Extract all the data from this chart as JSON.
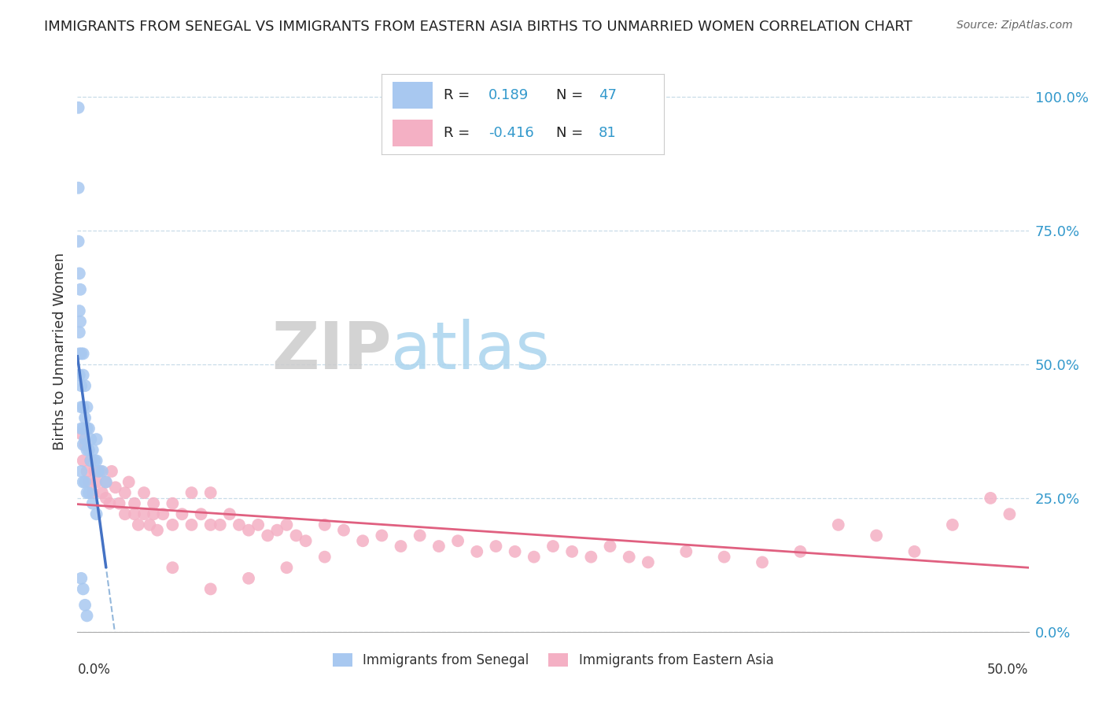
{
  "title": "IMMIGRANTS FROM SENEGAL VS IMMIGRANTS FROM EASTERN ASIA BIRTHS TO UNMARRIED WOMEN CORRELATION CHART",
  "source": "Source: ZipAtlas.com",
  "ylabel": "Births to Unmarried Women",
  "xlim": [
    0.0,
    0.5
  ],
  "ylim": [
    0.0,
    1.05
  ],
  "yaxis_labels": [
    "0.0%",
    "25.0%",
    "50.0%",
    "75.0%",
    "100.0%"
  ],
  "yaxis_values": [
    0.0,
    0.25,
    0.5,
    0.75,
    1.0
  ],
  "senegal_R": 0.189,
  "senegal_N": 47,
  "eastern_asia_R": -0.416,
  "eastern_asia_N": 81,
  "senegal_color": "#a8c8f0",
  "senegal_line_color": "#4472c4",
  "senegal_dash_color": "#6699cc",
  "eastern_asia_color": "#f4b0c4",
  "eastern_asia_line_color": "#e06080",
  "watermark_zip_color": "#cccccc",
  "watermark_atlas_color": "#99ccee",
  "grid_color": "#c8dce8",
  "senegal_x": [
    0.0005,
    0.0005,
    0.0005,
    0.001,
    0.001,
    0.001,
    0.001,
    0.001,
    0.0015,
    0.0015,
    0.002,
    0.002,
    0.002,
    0.002,
    0.003,
    0.003,
    0.003,
    0.003,
    0.003,
    0.004,
    0.004,
    0.004,
    0.005,
    0.005,
    0.005,
    0.006,
    0.006,
    0.007,
    0.007,
    0.008,
    0.009,
    0.01,
    0.01,
    0.011,
    0.013,
    0.015,
    0.002,
    0.003,
    0.004,
    0.005,
    0.006,
    0.008,
    0.01,
    0.002,
    0.003,
    0.004,
    0.005
  ],
  "senegal_y": [
    0.98,
    0.83,
    0.73,
    0.67,
    0.6,
    0.56,
    0.52,
    0.48,
    0.64,
    0.58,
    0.52,
    0.46,
    0.42,
    0.38,
    0.52,
    0.48,
    0.42,
    0.38,
    0.35,
    0.46,
    0.4,
    0.36,
    0.42,
    0.38,
    0.34,
    0.38,
    0.34,
    0.36,
    0.32,
    0.34,
    0.32,
    0.36,
    0.32,
    0.3,
    0.3,
    0.28,
    0.3,
    0.28,
    0.28,
    0.26,
    0.26,
    0.24,
    0.22,
    0.1,
    0.08,
    0.05,
    0.03
  ],
  "eastern_asia_x": [
    0.002,
    0.003,
    0.004,
    0.005,
    0.006,
    0.007,
    0.008,
    0.009,
    0.01,
    0.012,
    0.013,
    0.015,
    0.015,
    0.017,
    0.018,
    0.02,
    0.022,
    0.025,
    0.025,
    0.027,
    0.03,
    0.03,
    0.032,
    0.035,
    0.035,
    0.038,
    0.04,
    0.04,
    0.042,
    0.045,
    0.05,
    0.05,
    0.055,
    0.06,
    0.06,
    0.065,
    0.07,
    0.07,
    0.075,
    0.08,
    0.085,
    0.09,
    0.095,
    0.1,
    0.105,
    0.11,
    0.115,
    0.12,
    0.13,
    0.14,
    0.15,
    0.16,
    0.17,
    0.18,
    0.19,
    0.2,
    0.21,
    0.22,
    0.23,
    0.24,
    0.25,
    0.26,
    0.27,
    0.28,
    0.29,
    0.3,
    0.32,
    0.34,
    0.36,
    0.38,
    0.4,
    0.42,
    0.44,
    0.46,
    0.48,
    0.49,
    0.05,
    0.07,
    0.09,
    0.11,
    0.13
  ],
  "eastern_asia_y": [
    0.37,
    0.32,
    0.35,
    0.3,
    0.28,
    0.32,
    0.26,
    0.3,
    0.28,
    0.3,
    0.26,
    0.28,
    0.25,
    0.24,
    0.3,
    0.27,
    0.24,
    0.26,
    0.22,
    0.28,
    0.24,
    0.22,
    0.2,
    0.26,
    0.22,
    0.2,
    0.24,
    0.22,
    0.19,
    0.22,
    0.2,
    0.24,
    0.22,
    0.2,
    0.26,
    0.22,
    0.2,
    0.26,
    0.2,
    0.22,
    0.2,
    0.19,
    0.2,
    0.18,
    0.19,
    0.2,
    0.18,
    0.17,
    0.2,
    0.19,
    0.17,
    0.18,
    0.16,
    0.18,
    0.16,
    0.17,
    0.15,
    0.16,
    0.15,
    0.14,
    0.16,
    0.15,
    0.14,
    0.16,
    0.14,
    0.13,
    0.15,
    0.14,
    0.13,
    0.15,
    0.2,
    0.18,
    0.15,
    0.2,
    0.25,
    0.22,
    0.12,
    0.08,
    0.1,
    0.12,
    0.14
  ]
}
